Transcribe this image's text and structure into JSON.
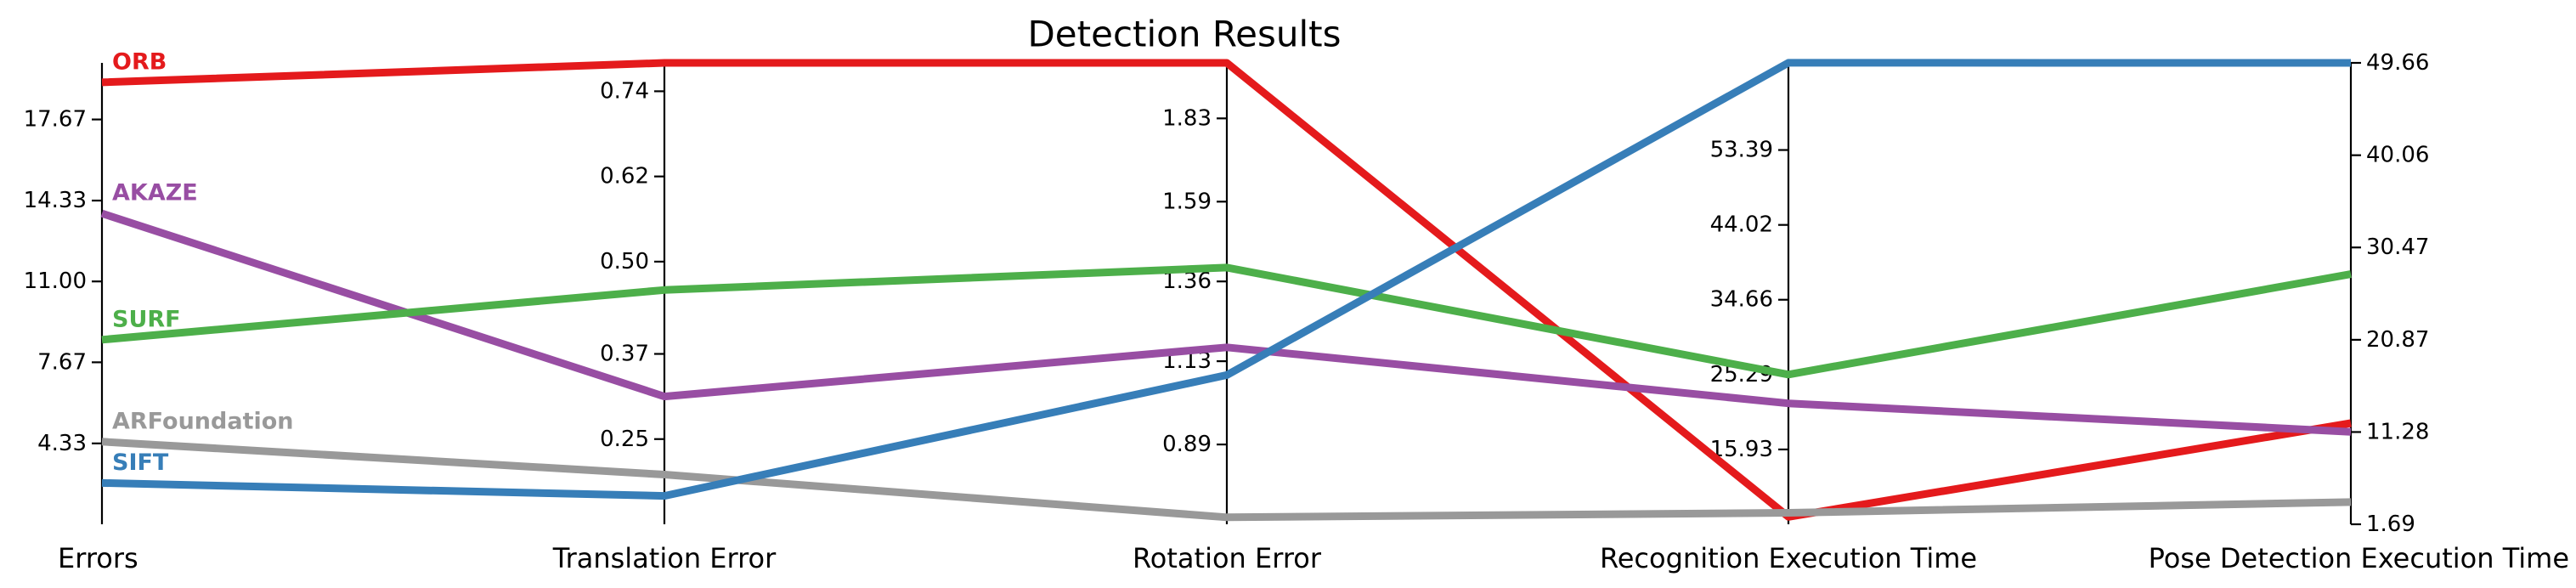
{
  "chart_data": {
    "type": "parallel_coordinates",
    "title": "Detection Results",
    "axes": [
      {
        "name": "Errors",
        "ticks": [
          "4.33",
          "7.67",
          "11.00",
          "14.33",
          "17.67"
        ],
        "tick_side": "left",
        "range": [
          1.0,
          20.0
        ]
      },
      {
        "name": "Translation Error",
        "ticks": [
          "0.25",
          "0.37",
          "0.50",
          "0.62",
          "0.74"
        ],
        "tick_side": "left",
        "range": [
          0.13,
          0.78
        ]
      },
      {
        "name": "Rotation Error",
        "ticks": [
          "0.89",
          "1.13",
          "1.36",
          "1.59",
          "1.83"
        ],
        "tick_side": "left",
        "range": [
          0.66,
          1.99
        ]
      },
      {
        "name": "Recognition Execution Time",
        "ticks": [
          "15.93",
          "25.29",
          "34.66",
          "44.02",
          "53.39"
        ],
        "tick_side": "left",
        "range": [
          6.57,
          64.29
        ]
      },
      {
        "name": "Pose Detection Execution Time",
        "ticks": [
          "1.69",
          "11.28",
          "20.87",
          "30.47",
          "40.06",
          "49.66"
        ],
        "tick_side": "right",
        "range": [
          1.69,
          49.66
        ]
      }
    ],
    "series": [
      {
        "name": "ORB",
        "color": "#e41a1c",
        "values": [
          19.2,
          0.78,
          1.99,
          7.5,
          12.2
        ]
      },
      {
        "name": "AKAZE",
        "color": "#984ea3",
        "values": [
          13.8,
          0.31,
          1.17,
          21.7,
          11.3
        ]
      },
      {
        "name": "SURF",
        "color": "#4daf4a",
        "values": [
          8.6,
          0.46,
          1.4,
          25.3,
          27.7
        ]
      },
      {
        "name": "ARFoundation",
        "color": "#999999",
        "values": [
          4.4,
          0.2,
          0.68,
          8.0,
          4.0
        ]
      },
      {
        "name": "SIFT",
        "color": "#377eb8",
        "values": [
          2.7,
          0.17,
          1.09,
          64.3,
          49.66
        ]
      }
    ],
    "legend_placement": "labels at left axis"
  }
}
